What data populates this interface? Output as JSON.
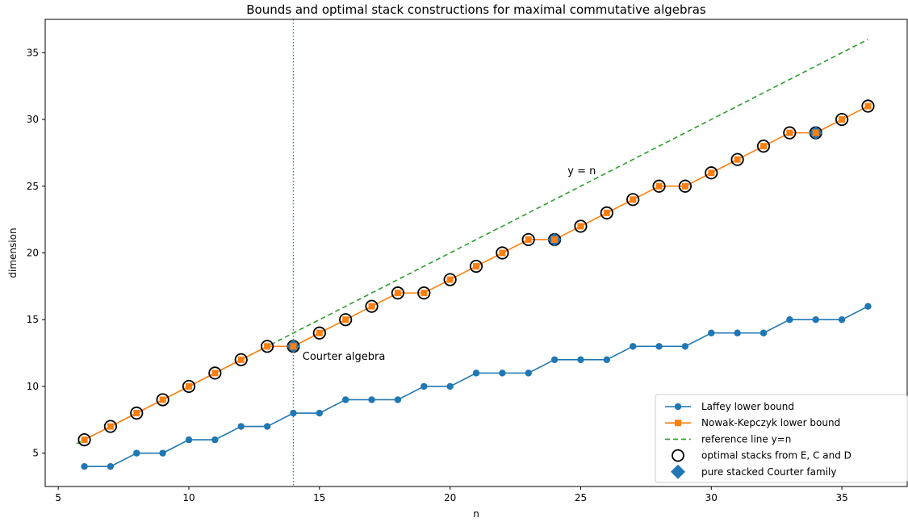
{
  "chart_data": {
    "type": "line",
    "title": "Bounds and optimal stack constructions for maximal commutative algebras",
    "xlabel": "n",
    "ylabel": "dimension",
    "xlim": [
      4.5,
      37.5
    ],
    "ylim": [
      2.5,
      37.5
    ],
    "xticks": [
      5,
      10,
      15,
      20,
      25,
      30,
      35
    ],
    "yticks": [
      5,
      10,
      15,
      20,
      25,
      30,
      35
    ],
    "grid": false,
    "legend_position": "lower-right",
    "x": [
      6,
      7,
      8,
      9,
      10,
      11,
      12,
      13,
      14,
      15,
      16,
      17,
      18,
      19,
      20,
      21,
      22,
      23,
      24,
      25,
      26,
      27,
      28,
      29,
      30,
      31,
      32,
      33,
      34,
      35,
      36
    ],
    "series": [
      {
        "name": "Laffey lower bound",
        "color": "#1f77b4",
        "marker": "circle",
        "values": [
          4,
          4,
          5,
          5,
          6,
          6,
          7,
          7,
          8,
          8,
          9,
          9,
          9,
          10,
          10,
          11,
          11,
          11,
          12,
          12,
          12,
          13,
          13,
          13,
          14,
          14,
          14,
          15,
          15,
          15,
          16
        ]
      },
      {
        "name": "Nowak-Kepczyk  lower bound",
        "color": "#ff7f0e",
        "marker": "square",
        "values": [
          6,
          7,
          8,
          9,
          10,
          11,
          12,
          13,
          13,
          14,
          15,
          16,
          17,
          17,
          18,
          19,
          20,
          21,
          21,
          22,
          23,
          24,
          25,
          25,
          26,
          27,
          28,
          29,
          29,
          30,
          31
        ]
      },
      {
        "name": "reference line y=n",
        "color": "#2ca02c",
        "style": "dashed",
        "x": [
          5.7,
          36
        ],
        "values": [
          5.7,
          36
        ]
      },
      {
        "name": "optimal stacks from E, C and D",
        "marker": "open-circle",
        "color": "#000000",
        "x": [
          6,
          7,
          8,
          9,
          10,
          11,
          12,
          13,
          14,
          15,
          16,
          17,
          18,
          19,
          20,
          21,
          22,
          23,
          24,
          25,
          26,
          27,
          28,
          29,
          30,
          31,
          32,
          33,
          34,
          35,
          36
        ],
        "values": [
          6,
          7,
          8,
          9,
          10,
          11,
          12,
          13,
          13,
          14,
          15,
          16,
          17,
          17,
          18,
          19,
          20,
          21,
          21,
          22,
          23,
          24,
          25,
          25,
          26,
          27,
          28,
          29,
          29,
          30,
          31
        ]
      },
      {
        "name": "pure stacked Courter family",
        "marker": "diamond",
        "color": "#1f77b4",
        "x": [
          14,
          24,
          34
        ],
        "values": [
          13,
          21,
          29
        ]
      }
    ],
    "vline": {
      "x": 14,
      "color": "#1f77b4",
      "style": "dotted"
    },
    "annotations": [
      {
        "text": "Courter algebra",
        "x": 14.35,
        "y": 12.3
      },
      {
        "text": "y = n",
        "x": 24.5,
        "y": 26.2
      }
    ]
  }
}
